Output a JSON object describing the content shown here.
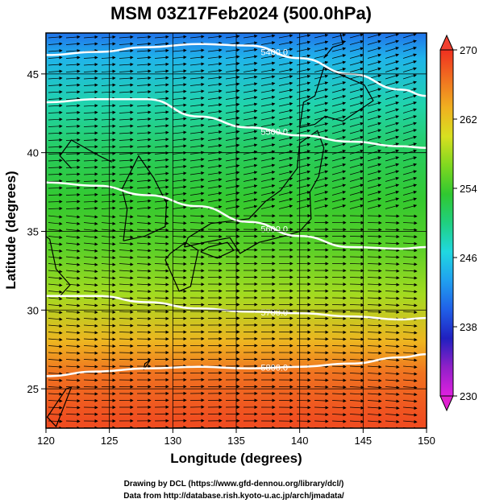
{
  "chart_data": {
    "type": "heatmap",
    "title": "MSM 03Z17Feb2024 (500.0hPa)",
    "xlabel": "Longitude (degrees)",
    "ylabel": "Latitude  (degrees)",
    "xlim": [
      120,
      150
    ],
    "ylim": [
      22.5,
      47.6
    ],
    "xticks": [
      120,
      125,
      130,
      135,
      140,
      145,
      150
    ],
    "yticks": [
      25,
      30,
      35,
      40,
      45
    ],
    "colorbar": {
      "min": 230,
      "max": 270,
      "ticks": [
        230,
        238,
        246,
        254,
        262,
        270
      ],
      "colors": [
        "#e020e0",
        "#9020c8",
        "#2020c0",
        "#2060e8",
        "#20a0f0",
        "#20d8e0",
        "#20d080",
        "#30c830",
        "#80d820",
        "#d8e020",
        "#f0b020",
        "#f07020",
        "#f03020"
      ]
    },
    "temperature_by_latitude": [
      {
        "lat": 23,
        "value": 268.5
      },
      {
        "lat": 26,
        "value": 266.5
      },
      {
        "lat": 28,
        "value": 263
      },
      {
        "lat": 31,
        "value": 258
      },
      {
        "lat": 34,
        "value": 255
      },
      {
        "lat": 37,
        "value": 253.5
      },
      {
        "lat": 40,
        "value": 251.5
      },
      {
        "lat": 43,
        "value": 248.5
      },
      {
        "lat": 46,
        "value": 244.5
      },
      {
        "lat": 47.6,
        "value": 241
      }
    ],
    "height_contours": [
      {
        "label": "5400.0",
        "points": [
          [
            120,
            46.2
          ],
          [
            124,
            46.4
          ],
          [
            128,
            46.7
          ],
          [
            132,
            46.9
          ],
          [
            136,
            46.8
          ],
          [
            140,
            46.0
          ],
          [
            144,
            45.0
          ],
          [
            148,
            44.0
          ],
          [
            150,
            43.6
          ]
        ]
      },
      {
        "label": "5500.0",
        "points": [
          [
            120,
            43.2
          ],
          [
            124,
            43.4
          ],
          [
            128,
            43.4
          ],
          [
            132,
            42.3
          ],
          [
            136,
            41.6
          ],
          [
            140,
            41.1
          ],
          [
            144,
            40.7
          ],
          [
            148,
            40.4
          ],
          [
            150,
            40.3
          ]
        ]
      },
      {
        "label": "5600.0",
        "points": [
          [
            120,
            38.1
          ],
          [
            124,
            37.9
          ],
          [
            128,
            37.3
          ],
          [
            132,
            36.6
          ],
          [
            136,
            35.6
          ],
          [
            140,
            34.7
          ],
          [
            144,
            34.0
          ],
          [
            148,
            33.9
          ],
          [
            150,
            34.0
          ]
        ]
      },
      {
        "label": "5700.0",
        "points": [
          [
            120,
            30.9
          ],
          [
            124,
            30.9
          ],
          [
            128,
            30.5
          ],
          [
            132,
            30.1
          ],
          [
            136,
            29.9
          ],
          [
            140,
            29.8
          ],
          [
            144,
            29.6
          ],
          [
            148,
            29.4
          ],
          [
            150,
            29.5
          ]
        ]
      },
      {
        "label": "5800.0",
        "points": [
          [
            120,
            25.8
          ],
          [
            124,
            26.1
          ],
          [
            128,
            26.3
          ],
          [
            132,
            26.4
          ],
          [
            136,
            26.3
          ],
          [
            140,
            26.4
          ],
          [
            144,
            26.6
          ],
          [
            148,
            27.0
          ],
          [
            150,
            27.2
          ]
        ]
      }
    ]
  },
  "footer": {
    "line1": "Drawing by DCL (https://www.gfd-dennou.org/library/dcl/)",
    "line2": "Data from http://database.rish.kyoto-u.ac.jp/arch/jmadata/"
  }
}
